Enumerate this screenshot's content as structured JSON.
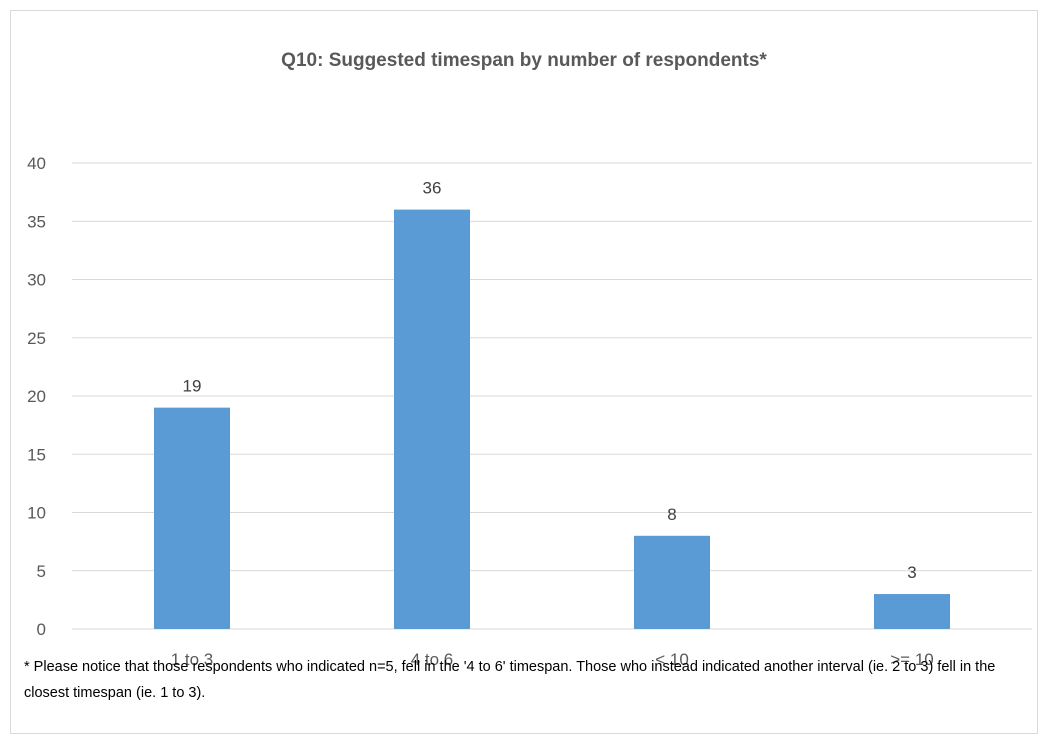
{
  "chart_data": {
    "type": "bar",
    "title": "Q10: Suggested timespan by number of respondents*",
    "categories": [
      "1 to 3",
      "4 to 6",
      "< 10",
      ">= 10"
    ],
    "values": [
      19,
      36,
      8,
      3
    ],
    "data_labels": [
      "19",
      "36",
      "8",
      "3"
    ],
    "y_ticks": [
      "0",
      "5",
      "10",
      "15",
      "20",
      "25",
      "30",
      "35",
      "40"
    ],
    "ylim": [
      0,
      40
    ],
    "xlabel": "",
    "ylabel": "",
    "grid": true,
    "legend": "none",
    "bar_color": "#5b9bd5",
    "grid_color": "#d9d9d9",
    "footnote": "* Please notice that those respondents who indicated n=5, fell in the '4 to 6' timespan. Those who instead indicated another interval (ie. 2 to 3) fell in the closest timespan (ie. 1 to 3)."
  }
}
